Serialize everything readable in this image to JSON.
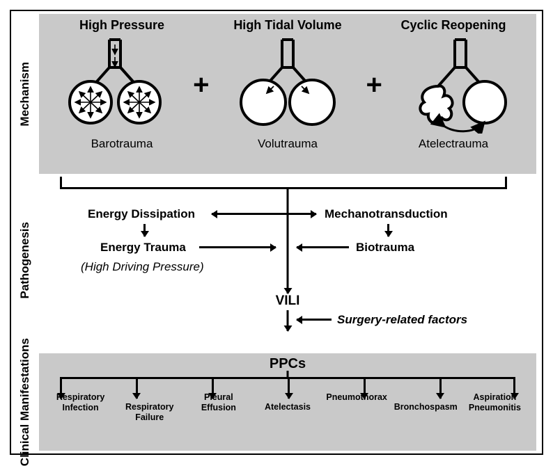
{
  "mechanism": {
    "row_label": "Mechanism",
    "titles": [
      "High Pressure",
      "High Tidal Volume",
      "Cyclic Reopening"
    ],
    "sub": [
      "Barotrauma",
      "Volutrauma",
      "Atelectrauma"
    ],
    "plus": "+",
    "colors": {
      "bg": "#c9c9c9",
      "stroke": "#000000",
      "fill": "#ffffff"
    }
  },
  "pathogenesis": {
    "row_label": "Pathogenesis",
    "energy_dissipation": "Energy Dissipation",
    "mechanotransduction": "Mechanotransduction",
    "energy_trauma": "Energy Trauma",
    "biotrauma": "Biotrauma",
    "driving": "(High Driving Pressure)",
    "vili": "VILI",
    "surgery": "Surgery-related factors"
  },
  "clinical": {
    "row_label": "Clinical Manifestations",
    "ppcs": "PPCs",
    "items": [
      "Respiratory Infection",
      "Respiratory Failure",
      "Pleural Effusion",
      "Atelectasis",
      "Pneumothorax",
      "Bronchospasm",
      "Aspiration Pneumonitis"
    ],
    "ups": [
      true,
      false,
      true,
      false,
      true,
      false,
      true
    ]
  }
}
